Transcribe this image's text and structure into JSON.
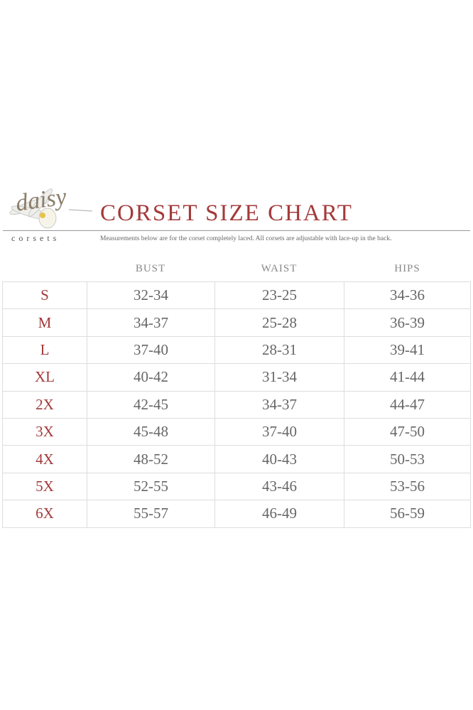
{
  "logo": {
    "script": "daisy",
    "word": "corsets"
  },
  "title": "CORSET SIZE CHART",
  "subtitle": "Measurements below are for the corset completely laced.  All corsets are adjustable with lace-up in the back.",
  "colors": {
    "accent": "#a33a3a",
    "text": "#666666",
    "grid": "#dddddd"
  },
  "columns": [
    "BUST",
    "WAIST",
    "HIPS"
  ],
  "rows": [
    {
      "size": "S",
      "bust": "32-34",
      "waist": "23-25",
      "hips": "34-36"
    },
    {
      "size": "M",
      "bust": "34-37",
      "waist": "25-28",
      "hips": "36-39"
    },
    {
      "size": "L",
      "bust": "37-40",
      "waist": "28-31",
      "hips": "39-41"
    },
    {
      "size": "XL",
      "bust": "40-42",
      "waist": "31-34",
      "hips": "41-44"
    },
    {
      "size": "2X",
      "bust": "42-45",
      "waist": "34-37",
      "hips": "44-47"
    },
    {
      "size": "3X",
      "bust": "45-48",
      "waist": "37-40",
      "hips": "47-50"
    },
    {
      "size": "4X",
      "bust": "48-52",
      "waist": "40-43",
      "hips": "50-53"
    },
    {
      "size": "5X",
      "bust": "52-55",
      "waist": "43-46",
      "hips": "53-56"
    },
    {
      "size": "6X",
      "bust": "55-57",
      "waist": "46-49",
      "hips": "56-59"
    }
  ]
}
